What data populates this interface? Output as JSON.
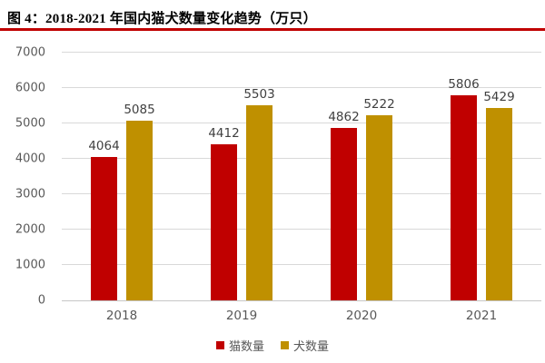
{
  "figure": {
    "title": "图 4：2018-2021 年国内猫犬数量变化趋势（万只）",
    "title_rule_color": "#C00000"
  },
  "chart_data": {
    "type": "bar",
    "title": "2018-2021 年国内猫犬数量变化趋势（万只）",
    "categories": [
      "2018",
      "2019",
      "2020",
      "2021"
    ],
    "series": [
      {
        "name": "猫数量",
        "color": "#C00000",
        "values": [
          4064,
          4412,
          4862,
          5806
        ]
      },
      {
        "name": "犬数量",
        "color": "#BF9000",
        "values": [
          5085,
          5503,
          5222,
          5429
        ]
      }
    ],
    "ylim": [
      0,
      7000
    ],
    "ytick_step": 1000,
    "yticks": [
      0,
      1000,
      2000,
      3000,
      4000,
      5000,
      6000,
      7000
    ],
    "xlabel": "",
    "ylabel": "",
    "grid": "horizontal",
    "legend_position": "bottom",
    "data_labels": true,
    "colors": {
      "gridline": "#D9D9D9",
      "baseline": "#C6C6C6",
      "tick_label": "#595959",
      "data_label": "#404040"
    }
  }
}
